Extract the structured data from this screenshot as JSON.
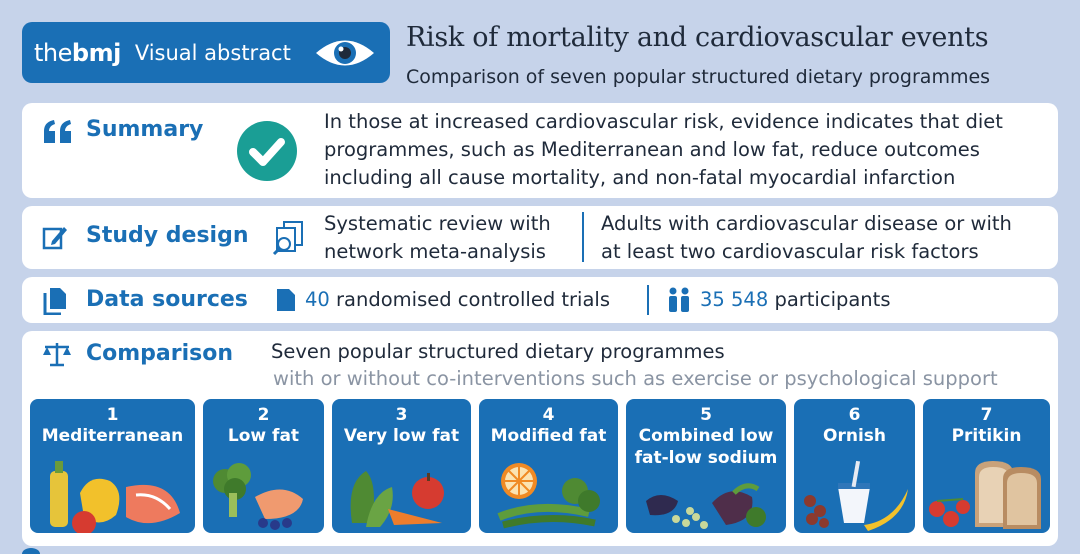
{
  "header": {
    "brand_the": "the",
    "brand_bmj": "bmj",
    "brand_tag": "Visual abstract",
    "title": "Risk of mortality and cardiovascular events",
    "subtitle": "Comparison of seven popular structured dietary programmes"
  },
  "summary": {
    "label": "Summary",
    "lines": [
      "In those at increased cardiovascular risk, evidence indicates that diet",
      "programmes, such as Mediterranean and low fat, reduce outcomes",
      "including all cause mortality, and non-fatal myocardial infarction"
    ]
  },
  "study_design": {
    "label": "Study design",
    "left_lines": [
      "Systematic review with",
      "network meta-analysis"
    ],
    "right_lines": [
      "Adults with cardiovascular disease or with",
      "at least two cardiovascular risk factors"
    ]
  },
  "data_sources": {
    "label": "Data sources",
    "trials_count": "40",
    "trials_text": "randomised controlled trials",
    "participants_count": "35 548",
    "participants_text": "participants"
  },
  "comparison": {
    "label": "Comparison",
    "line1": "Seven popular structured dietary programmes",
    "line2": "with or without co-interventions such as exercise or psychological support",
    "diets": [
      {
        "num": "1",
        "name": "Mediterranean",
        "name2": ""
      },
      {
        "num": "2",
        "name": "Low fat",
        "name2": ""
      },
      {
        "num": "3",
        "name": "Very low fat",
        "name2": ""
      },
      {
        "num": "4",
        "name": "Modified fat",
        "name2": ""
      },
      {
        "num": "5",
        "name": "Combined low",
        "name2": "fat-low sodium"
      },
      {
        "num": "6",
        "name": "Ornish",
        "name2": ""
      },
      {
        "num": "7",
        "name": "Pritikin",
        "name2": ""
      }
    ]
  },
  "colors": {
    "brand_blue": "#1a6fb5",
    "background": "#c6d3ea",
    "check_teal": "#1a9e95"
  }
}
